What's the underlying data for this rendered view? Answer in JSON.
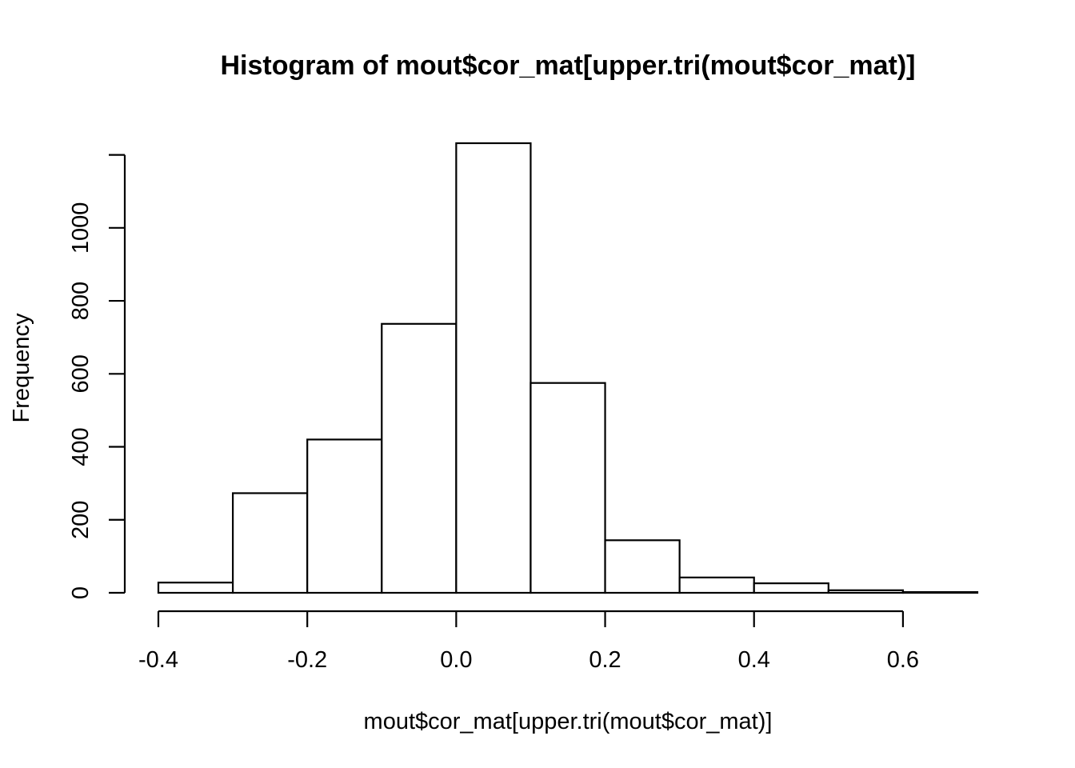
{
  "chart_data": {
    "type": "bar",
    "subtype": "histogram",
    "title": "Histogram of mout$cor_mat[upper.tri(mout$cor_mat)]",
    "xlabel": "mout$cor_mat[upper.tri(mout$cor_mat)]",
    "ylabel": "Frequency",
    "bins": [
      {
        "start": -0.4,
        "end": -0.3,
        "count": 28
      },
      {
        "start": -0.3,
        "end": -0.2,
        "count": 273
      },
      {
        "start": -0.2,
        "end": -0.1,
        "count": 420
      },
      {
        "start": -0.1,
        "end": 0.0,
        "count": 737
      },
      {
        "start": 0.0,
        "end": 0.1,
        "count": 1232
      },
      {
        "start": 0.1,
        "end": 0.2,
        "count": 575
      },
      {
        "start": 0.2,
        "end": 0.3,
        "count": 144
      },
      {
        "start": 0.3,
        "end": 0.4,
        "count": 42
      },
      {
        "start": 0.4,
        "end": 0.5,
        "count": 26
      },
      {
        "start": 0.5,
        "end": 0.6,
        "count": 7
      },
      {
        "start": 0.6,
        "end": 0.7,
        "count": 2
      }
    ],
    "xlim": [
      -0.4,
      0.7
    ],
    "ylim": [
      0,
      1232
    ],
    "x_ticks": [
      -0.4,
      -0.2,
      0.0,
      0.2,
      0.4,
      0.6
    ],
    "x_tick_labels": [
      "-0.4",
      "-0.2",
      "0.0",
      "0.2",
      "0.4",
      "0.6"
    ],
    "y_ticks": [
      0,
      200,
      400,
      600,
      800,
      1000
    ],
    "y_tick_labels": [
      "0",
      "200",
      "400",
      "600",
      "800",
      "1000"
    ],
    "y_axis_extent": 1200,
    "grid": false,
    "legend": "none"
  }
}
